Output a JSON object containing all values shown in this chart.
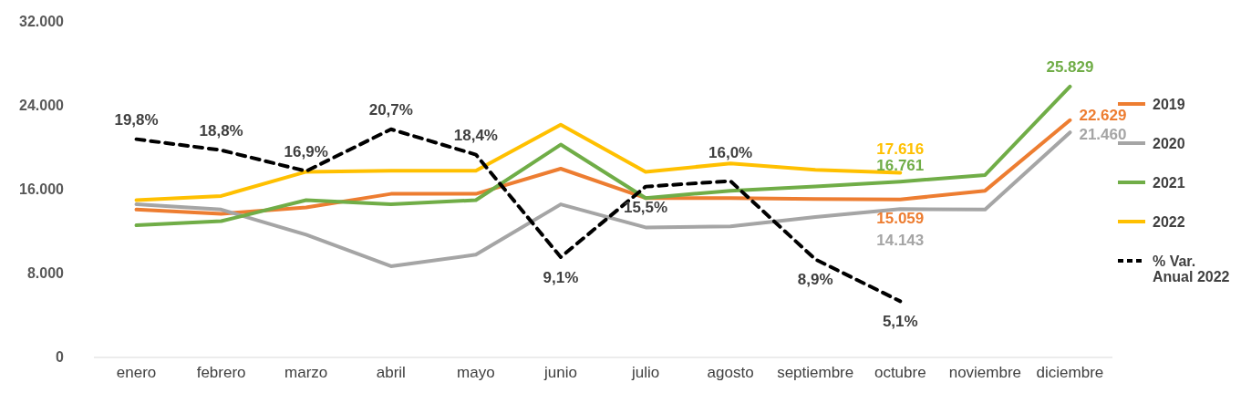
{
  "chart_data": {
    "type": "line",
    "categories": [
      "enero",
      "febrero",
      "marzo",
      "abril",
      "mayo",
      "junio",
      "julio",
      "agosto",
      "septiembre",
      "octubre",
      "noviembre",
      "diciembre"
    ],
    "ylim": [
      0,
      32000
    ],
    "yticks": [
      {
        "value": 0,
        "label": "0"
      },
      {
        "value": 8000,
        "label": "8.000"
      },
      {
        "value": 16000,
        "label": "16.000"
      },
      {
        "value": 24000,
        "label": "24.000"
      },
      {
        "value": 32000,
        "label": "32.000"
      }
    ],
    "legend": "right",
    "grid": false,
    "line_style": "solid",
    "marker": "none",
    "series": [
      {
        "name": "2019",
        "color": "#ed7d31",
        "values": [
          14100,
          13700,
          14300,
          15600,
          15600,
          18000,
          15200,
          15200,
          15100,
          15059,
          15900,
          22629
        ],
        "value_labels": [
          null,
          null,
          null,
          null,
          null,
          null,
          null,
          null,
          null,
          "15.059",
          null,
          "22.629"
        ]
      },
      {
        "name": "2020",
        "color": "#a5a5a5",
        "values": [
          14600,
          14100,
          11700,
          8700,
          9800,
          14600,
          12400,
          12500,
          13400,
          14143,
          14100,
          21460
        ],
        "value_labels": [
          null,
          null,
          null,
          null,
          null,
          null,
          null,
          null,
          null,
          "14.143",
          null,
          "21.460"
        ]
      },
      {
        "name": "2021",
        "color": "#70ad47",
        "values": [
          12600,
          13000,
          15000,
          14600,
          15000,
          20300,
          15200,
          15900,
          16300,
          16761,
          17400,
          25829
        ],
        "value_labels": [
          null,
          null,
          null,
          null,
          null,
          null,
          null,
          null,
          null,
          "16.761",
          null,
          "25.829"
        ]
      },
      {
        "name": "2022",
        "color": "#ffc000",
        "values": [
          15000,
          15400,
          17700,
          17800,
          17800,
          22200,
          17700,
          18500,
          17900,
          17616,
          null,
          null
        ],
        "value_labels": [
          null,
          null,
          null,
          null,
          null,
          null,
          null,
          null,
          null,
          "17.616",
          null,
          null
        ]
      },
      {
        "name": "% Var. Anual 2022",
        "color": "#000000",
        "axis": "y2",
        "line_style": "dashed",
        "values": [
          19.8,
          18.8,
          16.9,
          20.7,
          18.4,
          9.1,
          15.5,
          16.0,
          8.9,
          5.1,
          null,
          null
        ],
        "value_labels": [
          "19,8%",
          "18,8%",
          "16,9%",
          "20,7%",
          "18,4%",
          "9,1%",
          "15,5%",
          "16,0%",
          "8,9%",
          "5,1%",
          null,
          null
        ]
      }
    ]
  }
}
